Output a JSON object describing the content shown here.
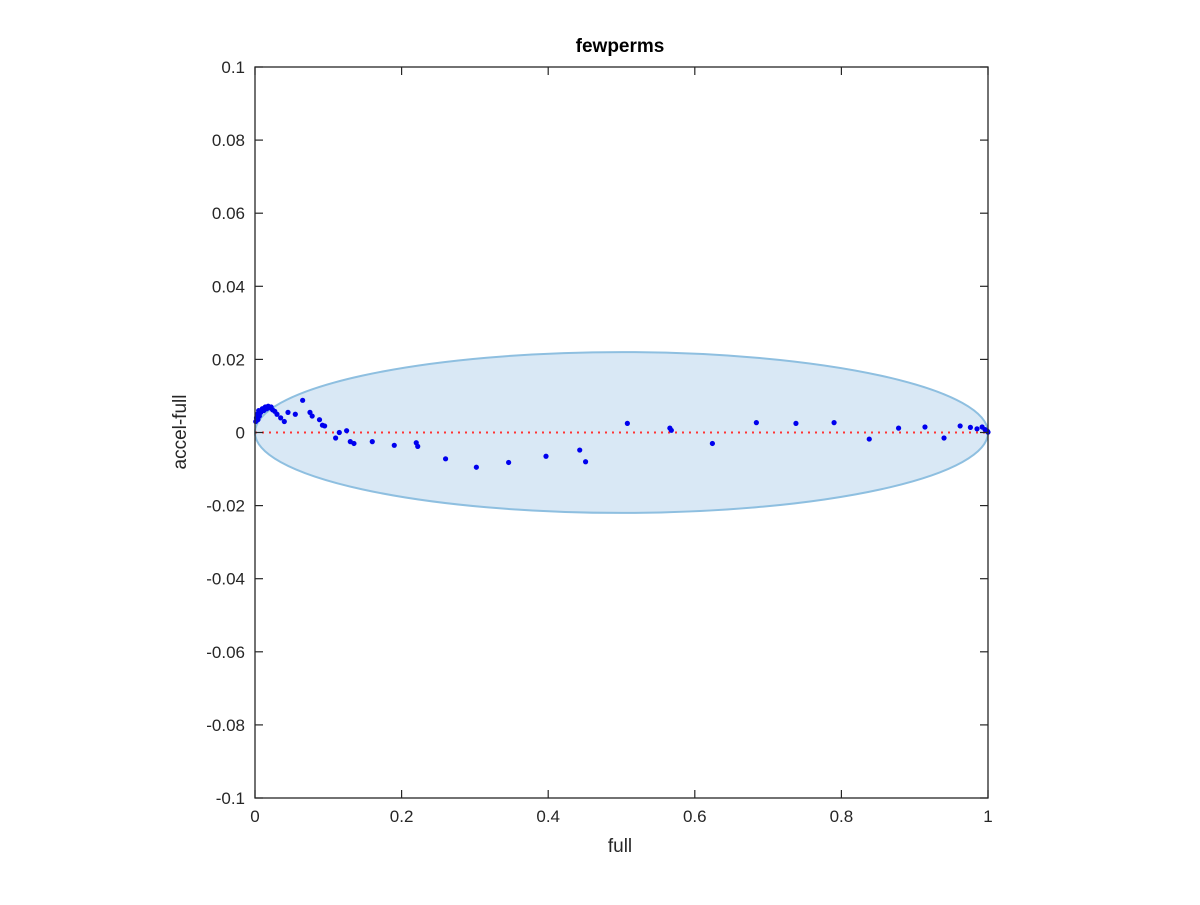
{
  "chart_data": {
    "type": "scatter",
    "title": "fewperms",
    "xlabel": "full",
    "ylabel": "accel-full",
    "xlim": [
      0,
      1
    ],
    "ylim": [
      -0.1,
      0.1
    ],
    "xticks": [
      0,
      0.2,
      0.4,
      0.6,
      0.8,
      1
    ],
    "xtick_labels": [
      "0",
      "0.2",
      "0.4",
      "0.6",
      "0.8",
      "1"
    ],
    "yticks": [
      0.1,
      0.08,
      0.06,
      0.04,
      0.02,
      0,
      -0.02,
      -0.04,
      -0.06,
      -0.08,
      -0.1
    ],
    "ytick_labels": [
      "0.1",
      "0.08",
      "0.06",
      "0.04",
      "0.02",
      "0",
      "-0.02",
      "-0.04",
      "-0.06",
      "-0.08",
      "-0.1"
    ],
    "grid": false,
    "reference_line": {
      "y": 0,
      "style": "dotted",
      "color": "#ff3333"
    },
    "region": {
      "shape": "ellipse",
      "cx": 0.5,
      "cy": 0,
      "rx": 0.5,
      "ry": 0.022,
      "fill": "#d9e8f5",
      "stroke": "#8ebfe0"
    },
    "point_color": "#0000ee",
    "points": [
      {
        "x": 0.001,
        "y": 0.003
      },
      {
        "x": 0.002,
        "y": 0.004
      },
      {
        "x": 0.003,
        "y": 0.005
      },
      {
        "x": 0.004,
        "y": 0.0035
      },
      {
        "x": 0.005,
        "y": 0.006
      },
      {
        "x": 0.006,
        "y": 0.0045
      },
      {
        "x": 0.008,
        "y": 0.0055
      },
      {
        "x": 0.01,
        "y": 0.0065
      },
      {
        "x": 0.012,
        "y": 0.006
      },
      {
        "x": 0.014,
        "y": 0.007
      },
      {
        "x": 0.016,
        "y": 0.0065
      },
      {
        "x": 0.018,
        "y": 0.0072
      },
      {
        "x": 0.02,
        "y": 0.0068
      },
      {
        "x": 0.022,
        "y": 0.007
      },
      {
        "x": 0.024,
        "y": 0.0062
      },
      {
        "x": 0.027,
        "y": 0.0058
      },
      {
        "x": 0.03,
        "y": 0.005
      },
      {
        "x": 0.035,
        "y": 0.004
      },
      {
        "x": 0.04,
        "y": 0.003
      },
      {
        "x": 0.045,
        "y": 0.0055
      },
      {
        "x": 0.055,
        "y": 0.005
      },
      {
        "x": 0.065,
        "y": 0.0088
      },
      {
        "x": 0.075,
        "y": 0.0055
      },
      {
        "x": 0.078,
        "y": 0.0045
      },
      {
        "x": 0.088,
        "y": 0.0035
      },
      {
        "x": 0.092,
        "y": 0.002
      },
      {
        "x": 0.095,
        "y": 0.0018
      },
      {
        "x": 0.11,
        "y": -0.0015
      },
      {
        "x": 0.115,
        "y": 0.0
      },
      {
        "x": 0.125,
        "y": 0.0005
      },
      {
        "x": 0.13,
        "y": -0.0025
      },
      {
        "x": 0.135,
        "y": -0.003
      },
      {
        "x": 0.16,
        "y": -0.0025
      },
      {
        "x": 0.19,
        "y": -0.0035
      },
      {
        "x": 0.22,
        "y": -0.0028
      },
      {
        "x": 0.222,
        "y": -0.0038
      },
      {
        "x": 0.26,
        "y": -0.0072
      },
      {
        "x": 0.302,
        "y": -0.0095
      },
      {
        "x": 0.346,
        "y": -0.0082
      },
      {
        "x": 0.397,
        "y": -0.0065
      },
      {
        "x": 0.443,
        "y": -0.0048
      },
      {
        "x": 0.451,
        "y": -0.008
      },
      {
        "x": 0.508,
        "y": 0.0025
      },
      {
        "x": 0.566,
        "y": 0.0012
      },
      {
        "x": 0.568,
        "y": 0.0006
      },
      {
        "x": 0.624,
        "y": -0.003
      },
      {
        "x": 0.684,
        "y": 0.0027
      },
      {
        "x": 0.738,
        "y": 0.0025
      },
      {
        "x": 0.79,
        "y": 0.0027
      },
      {
        "x": 0.838,
        "y": -0.0018
      },
      {
        "x": 0.878,
        "y": 0.0012
      },
      {
        "x": 0.914,
        "y": 0.0015
      },
      {
        "x": 0.94,
        "y": -0.0015
      },
      {
        "x": 0.962,
        "y": 0.0018
      },
      {
        "x": 0.976,
        "y": 0.0014
      },
      {
        "x": 0.985,
        "y": 0.001
      },
      {
        "x": 0.992,
        "y": 0.0015
      },
      {
        "x": 0.996,
        "y": 0.0008
      },
      {
        "x": 0.999,
        "y": 0.0004
      },
      {
        "x": 1.0,
        "y": 0.0001
      }
    ]
  }
}
